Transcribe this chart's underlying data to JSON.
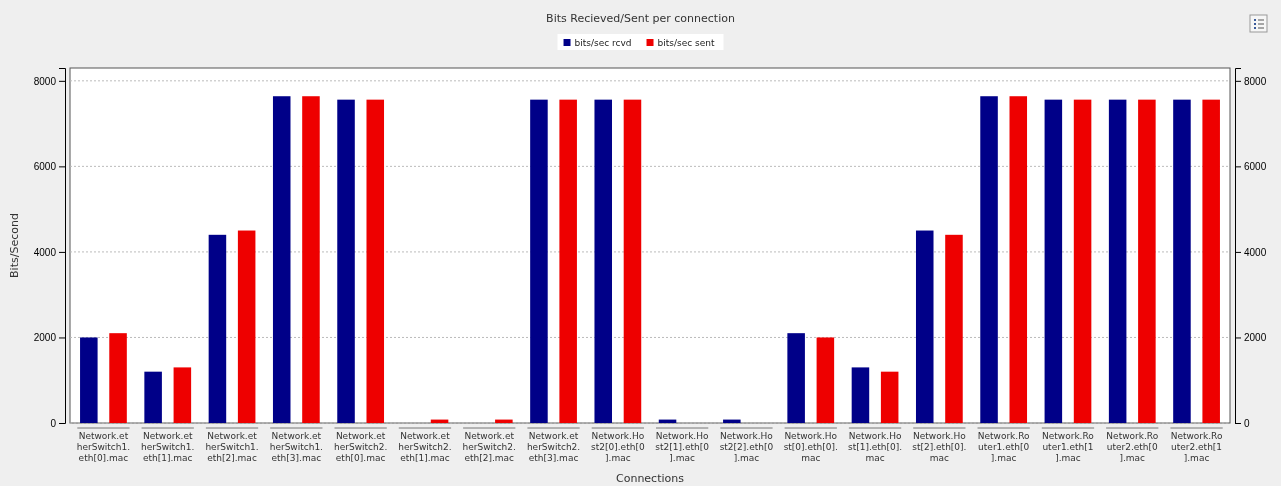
{
  "chart_data": {
    "type": "bar",
    "title": "Bits Recieved/Sent per connection",
    "xlabel": "Connections",
    "ylabel": "Bits/Second",
    "categories": [
      "Network.etherSwitch1.eth[0].mac",
      "Network.etherSwitch1.eth[1].mac",
      "Network.etherSwitch1.eth[2].mac",
      "Network.etherSwitch1.eth[3].mac",
      "Network.etherSwitch2.eth[0].mac",
      "Network.etherSwitch2.eth[1].mac",
      "Network.etherSwitch2.eth[2].mac",
      "Network.etherSwitch2.eth[3].mac",
      "Network.Host2[0].eth[0].mac",
      "Network.Host2[1].eth[0].mac",
      "Network.Host2[2].eth[0].mac",
      "Network.Host[0].eth[0].mac",
      "Network.Host[1].eth[0].mac",
      "Network.Host[2].eth[0].mac",
      "Network.Router1.eth[0].mac",
      "Network.Router1.eth[1].mac",
      "Network.Router2.eth[0].mac",
      "Network.Router2.eth[1].mac"
    ],
    "series": [
      {
        "name": "bits/sec rcvd",
        "color": "#000088",
        "values": [
          2000,
          1200,
          4400,
          7640,
          7560,
          0,
          0,
          7560,
          7560,
          80,
          80,
          2100,
          1300,
          4500,
          7640,
          7560,
          7560,
          7560
        ]
      },
      {
        "name": "bits/sec sent",
        "color": "#ee0000",
        "values": [
          2100,
          1300,
          4500,
          7640,
          7560,
          80,
          80,
          7560,
          7560,
          0,
          0,
          2000,
          1200,
          4400,
          7640,
          7560,
          7560,
          7560
        ]
      }
    ],
    "ylim": [
      0,
      8300
    ],
    "yticks": [
      0,
      2000,
      4000,
      6000,
      8000
    ],
    "y2lim": [
      0,
      8300
    ],
    "y2ticks": [
      0,
      2000,
      4000,
      6000,
      8000
    ],
    "grid": "y",
    "legend": "top"
  }
}
